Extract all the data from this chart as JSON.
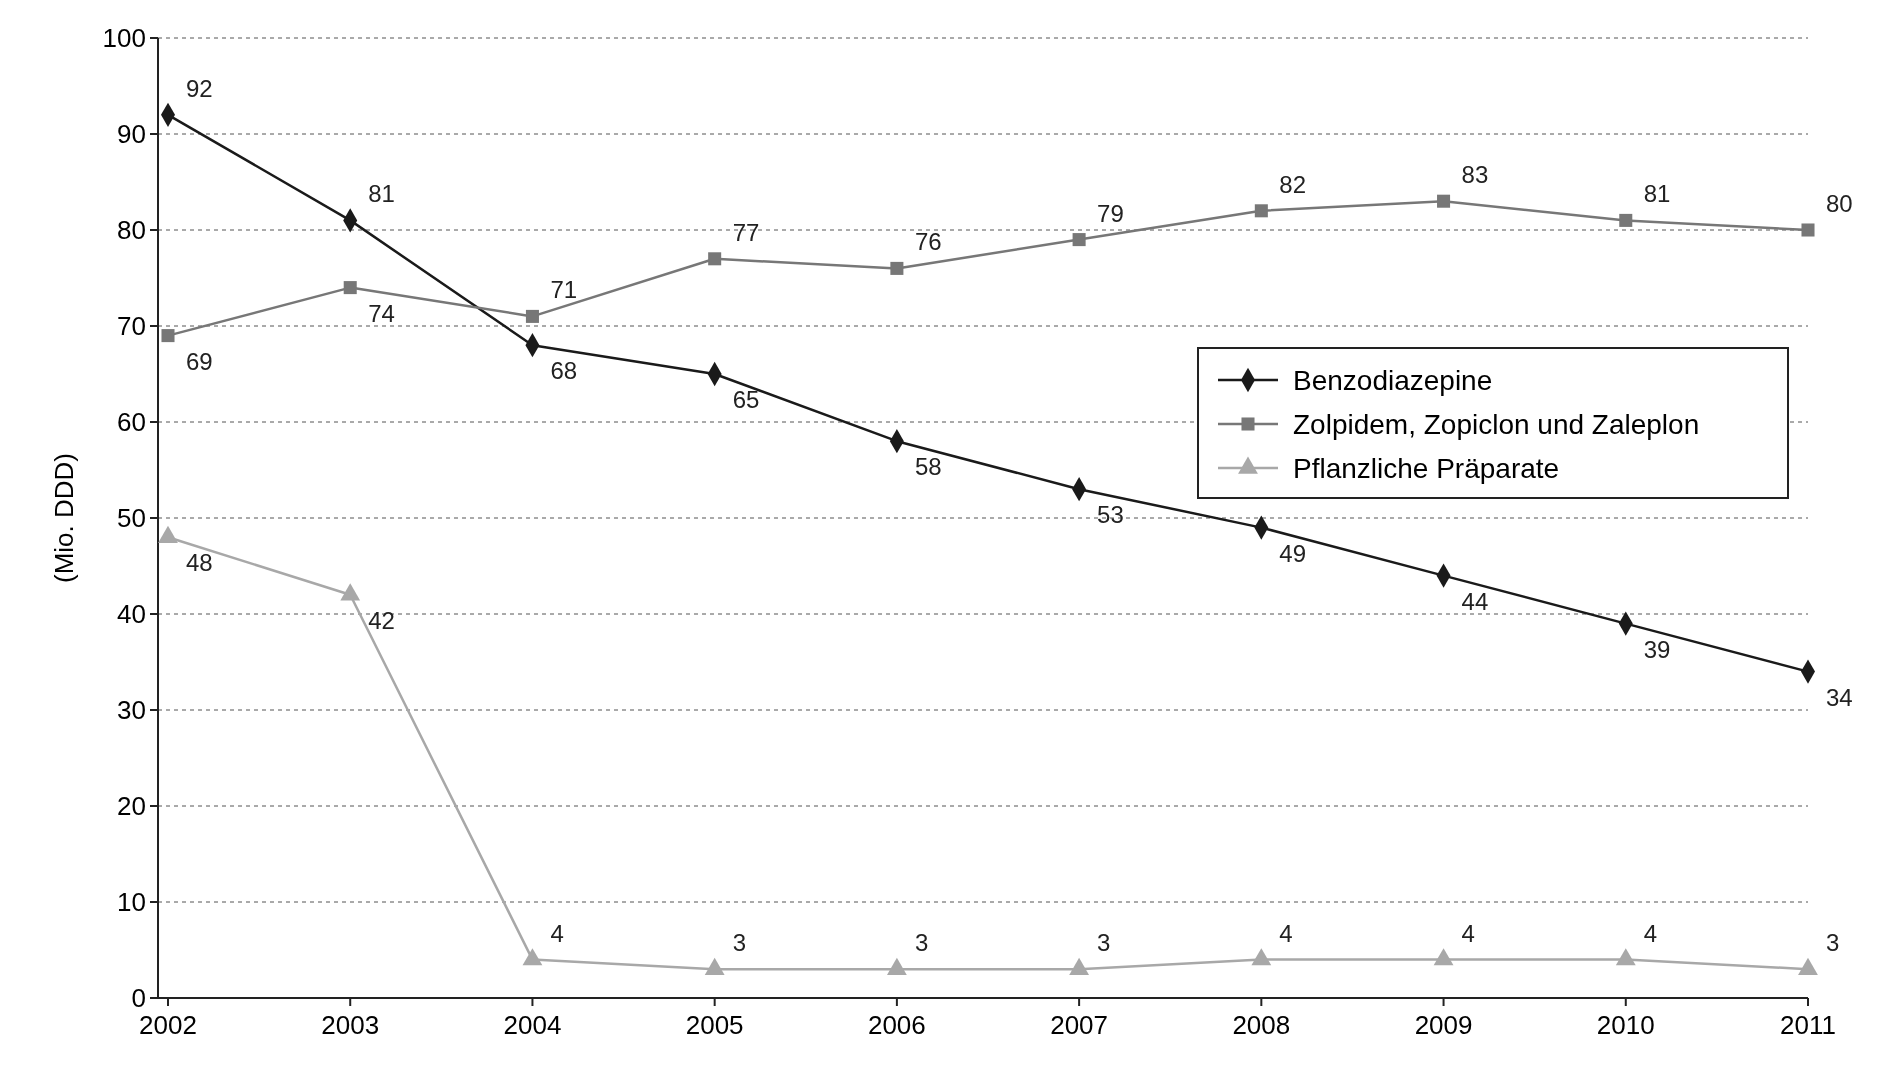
{
  "chart_data": {
    "type": "line",
    "ylabel": "(Mio. DDD)",
    "categories": [
      "2002",
      "2003",
      "2004",
      "2005",
      "2006",
      "2007",
      "2008",
      "2009",
      "2010",
      "2011"
    ],
    "series": [
      {
        "name": "Benzodiazepine",
        "color": "#1a1a1a",
        "marker": "diamond",
        "values": [
          92,
          81,
          68,
          65,
          58,
          53,
          49,
          44,
          39,
          34
        ]
      },
      {
        "name": "Zolpidem, Zopiclon und Zaleplon",
        "color": "#777777",
        "marker": "square",
        "values": [
          69,
          74,
          71,
          77,
          76,
          79,
          82,
          83,
          81,
          80
        ]
      },
      {
        "name": "Pflanzliche Präparate",
        "color": "#a8a8a8",
        "marker": "triangle",
        "values": [
          48,
          42,
          4,
          3,
          3,
          3,
          4,
          4,
          4,
          3
        ]
      }
    ],
    "ylim": [
      0,
      100
    ],
    "yticks": [
      0,
      10,
      20,
      30,
      40,
      50,
      60,
      70,
      80,
      90,
      100
    ],
    "grid": "y",
    "legend": "right",
    "data_labels": true,
    "line_style": "solid"
  }
}
